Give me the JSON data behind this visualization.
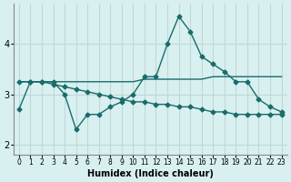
{
  "xlabel": "Humidex (Indice chaleur)",
  "ylabel": "",
  "background_color": "#d8f0f0",
  "grid_color": "#c0d8d8",
  "line_color": "#1a6b6b",
  "x_values": [
    0,
    1,
    2,
    3,
    4,
    5,
    6,
    7,
    8,
    9,
    10,
    11,
    12,
    13,
    14,
    15,
    16,
    17,
    18,
    19,
    20,
    21,
    22,
    23
  ],
  "series1": [
    2.7,
    3.25,
    3.25,
    3.25,
    3.0,
    2.3,
    2.6,
    2.6,
    2.75,
    2.85,
    3.0,
    3.35,
    3.35,
    4.0,
    4.55,
    4.25,
    3.75,
    3.6,
    3.45,
    3.25,
    3.25,
    2.9,
    2.75,
    2.65
  ],
  "series2": [
    3.25,
    3.25,
    3.25,
    3.25,
    3.25,
    3.25,
    3.25,
    3.25,
    3.25,
    3.25,
    3.25,
    3.3,
    3.3,
    3.3,
    3.3,
    3.3,
    3.3,
    3.35,
    3.35,
    3.35,
    3.35,
    3.35,
    3.35,
    3.35
  ],
  "series3": [
    3.25,
    3.25,
    3.25,
    3.2,
    3.15,
    3.1,
    3.05,
    3.0,
    2.95,
    2.9,
    2.85,
    2.85,
    2.8,
    2.8,
    2.75,
    2.75,
    2.7,
    2.65,
    2.65,
    2.6,
    2.6,
    2.6,
    2.6,
    2.6
  ],
  "ylim": [
    1.8,
    4.8
  ],
  "yticks": [
    2,
    3,
    4
  ],
  "xlim": [
    -0.5,
    23.5
  ]
}
